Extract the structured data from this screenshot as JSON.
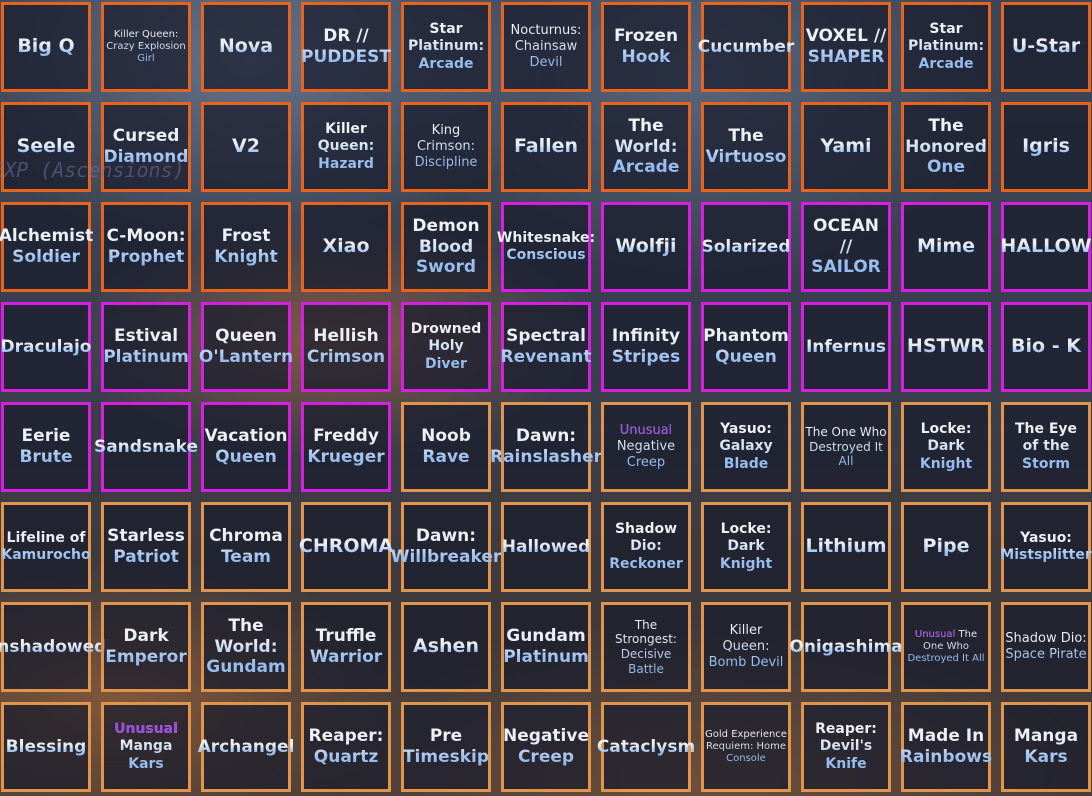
{
  "overlay_text": "EXP (Ascensions)",
  "tier_colors": {
    "orange": "#e8641c",
    "magenta": "#d81ee0",
    "light_orange": "#e0944c"
  },
  "unusual_color": "#9a4ce0",
  "rows": [
    {
      "tiles": [
        {
          "name": "Big Q",
          "tier": "orange"
        },
        {
          "name": "Killer Queen: Crazy Explosion Girl",
          "tier": "orange"
        },
        {
          "name": "Nova",
          "tier": "orange"
        },
        {
          "name": "DR // PUDDEST",
          "tier": "orange"
        },
        {
          "name": "Star Platinum: Arcade",
          "tier": "orange"
        },
        {
          "name": "Nocturnus: Chainsaw Devil",
          "tier": "orange"
        },
        {
          "name": "Frozen Hook",
          "tier": "orange"
        },
        {
          "name": "Cucumber",
          "tier": "orange"
        },
        {
          "name": "VOXEL // SHAPER",
          "tier": "orange"
        },
        {
          "name": "Star Platinum: Arcade",
          "tier": "orange"
        },
        {
          "name": "U-Star",
          "tier": "orange"
        }
      ]
    },
    {
      "tiles": [
        {
          "name": "Seele",
          "tier": "orange"
        },
        {
          "name": "Cursed Diamond",
          "tier": "orange"
        },
        {
          "name": "V2",
          "tier": "orange"
        },
        {
          "name": "Killer Queen: Hazard",
          "tier": "orange"
        },
        {
          "name": "King Crimson: Discipline",
          "tier": "orange"
        },
        {
          "name": "Fallen",
          "tier": "orange"
        },
        {
          "name": "The World: Arcade",
          "tier": "orange"
        },
        {
          "name": "The Virtuoso",
          "tier": "orange"
        },
        {
          "name": "Yami",
          "tier": "orange"
        },
        {
          "name": "The Honored One",
          "tier": "orange"
        },
        {
          "name": "Igris",
          "tier": "orange"
        }
      ]
    },
    {
      "tiles": [
        {
          "name": "Alchemist Soldier",
          "tier": "orange"
        },
        {
          "name": "C-Moon: Prophet",
          "tier": "orange"
        },
        {
          "name": "Frost Knight",
          "tier": "orange"
        },
        {
          "name": "Xiao",
          "tier": "orange"
        },
        {
          "name": "Demon Blood Sword",
          "tier": "orange"
        },
        {
          "name": "Whitesnake: Conscious",
          "tier": "magenta"
        },
        {
          "name": "Wolfji",
          "tier": "magenta"
        },
        {
          "name": "Solarized",
          "tier": "magenta"
        },
        {
          "name": "OCEAN // SAILOR",
          "tier": "magenta"
        },
        {
          "name": "Mime",
          "tier": "magenta"
        },
        {
          "name": "HALLOW",
          "tier": "magenta"
        }
      ]
    },
    {
      "tiles": [
        {
          "name": "Draculajo",
          "tier": "magenta"
        },
        {
          "name": "Estival Platinum",
          "tier": "magenta"
        },
        {
          "name": "Queen O'Lantern",
          "tier": "magenta"
        },
        {
          "name": "Hellish Crimson",
          "tier": "magenta"
        },
        {
          "name": "Drowned Holy Diver",
          "tier": "magenta"
        },
        {
          "name": "Spectral Revenant",
          "tier": "magenta"
        },
        {
          "name": "Infinity Stripes",
          "tier": "magenta"
        },
        {
          "name": "Phantom Queen",
          "tier": "magenta"
        },
        {
          "name": "Infernus",
          "tier": "magenta"
        },
        {
          "name": "HSTWR",
          "tier": "magenta"
        },
        {
          "name": "Bio - K",
          "tier": "magenta"
        }
      ]
    },
    {
      "tiles": [
        {
          "name": "Eerie Brute",
          "tier": "magenta"
        },
        {
          "name": "Sandsnake",
          "tier": "magenta"
        },
        {
          "name": "Vacation Queen",
          "tier": "magenta"
        },
        {
          "name": "Freddy Krueger",
          "tier": "magenta"
        },
        {
          "name": "Noob Rave",
          "tier": "light_orange"
        },
        {
          "name": "Dawn: Rainslasher",
          "tier": "light_orange"
        },
        {
          "prefix": "Unusual",
          "name": "Negative Creep",
          "tier": "light_orange"
        },
        {
          "name": "Yasuo: Galaxy Blade",
          "tier": "light_orange"
        },
        {
          "name": "The One Who Destroyed It All",
          "tier": "light_orange"
        },
        {
          "name": "Locke: Dark Knight",
          "tier": "light_orange"
        },
        {
          "name": "The Eye of the Storm",
          "tier": "light_orange"
        }
      ]
    },
    {
      "tiles": [
        {
          "name": "Lifeline of Kamurocho",
          "tier": "light_orange"
        },
        {
          "name": "Starless Patriot",
          "tier": "light_orange"
        },
        {
          "name": "Chroma Team",
          "tier": "light_orange"
        },
        {
          "name": "CHROMA",
          "tier": "light_orange"
        },
        {
          "name": "Dawn: Willbreaker",
          "tier": "light_orange"
        },
        {
          "name": "Hallowed",
          "tier": "light_orange"
        },
        {
          "name": "Shadow Dio: Reckoner",
          "tier": "light_orange"
        },
        {
          "name": "Locke: Dark Knight",
          "tier": "light_orange"
        },
        {
          "name": "Lithium",
          "tier": "light_orange"
        },
        {
          "name": "Pipe",
          "tier": "light_orange"
        },
        {
          "name": "Yasuo: Mistsplitter",
          "tier": "light_orange"
        }
      ]
    },
    {
      "tiles": [
        {
          "name": "Enshadowed",
          "tier": "light_orange"
        },
        {
          "name": "Dark Emperor",
          "tier": "light_orange"
        },
        {
          "name": "The World: Gundam",
          "tier": "light_orange"
        },
        {
          "name": "Truffle Warrior",
          "tier": "light_orange"
        },
        {
          "name": "Ashen",
          "tier": "light_orange"
        },
        {
          "name": "Gundam Platinum",
          "tier": "light_orange"
        },
        {
          "name": "The Strongest: Decisive Battle",
          "tier": "light_orange"
        },
        {
          "name": "Killer Queen: Bomb Devil",
          "tier": "light_orange"
        },
        {
          "name": "Onigashima",
          "tier": "light_orange"
        },
        {
          "prefix": "Unusual",
          "name": "The One Who Destroyed It All",
          "tier": "light_orange"
        },
        {
          "name": "Shadow Dio: Space Pirate",
          "tier": "light_orange"
        }
      ]
    },
    {
      "tiles": [
        {
          "name": "Blessing",
          "tier": "light_orange"
        },
        {
          "prefix": "Unusual",
          "name": "Manga Kars",
          "tier": "light_orange"
        },
        {
          "name": "Archangel",
          "tier": "light_orange"
        },
        {
          "name": "Reaper: Quartz",
          "tier": "light_orange"
        },
        {
          "name": "Pre Timeskip",
          "tier": "light_orange"
        },
        {
          "name": "Negative Creep",
          "tier": "light_orange"
        },
        {
          "name": "Cataclysm",
          "tier": "light_orange"
        },
        {
          "name": "Gold Experience Requiem: Home Console",
          "tier": "light_orange"
        },
        {
          "name": "Reaper: Devil's Knife",
          "tier": "light_orange"
        },
        {
          "name": "Made In Rainbows",
          "tier": "light_orange"
        },
        {
          "name": "Manga Kars",
          "tier": "light_orange"
        }
      ]
    }
  ]
}
